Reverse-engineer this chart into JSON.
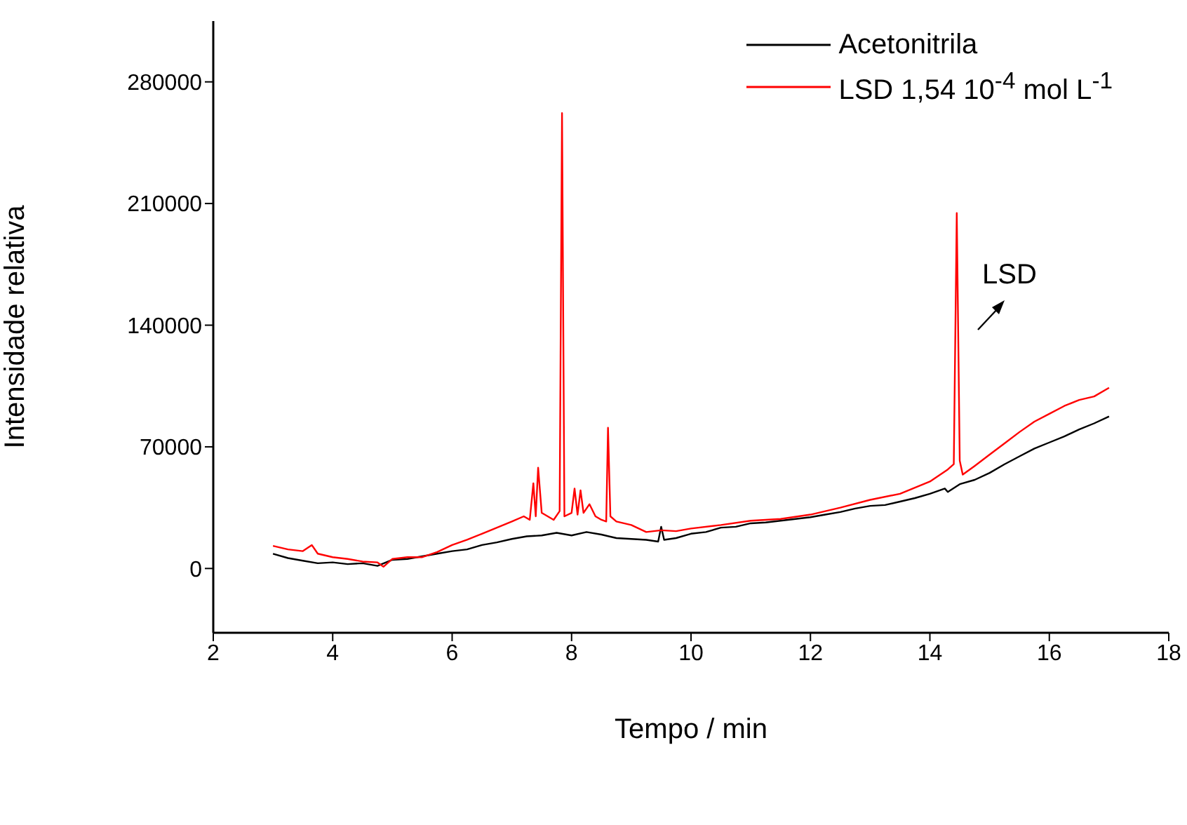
{
  "chart_data": {
    "type": "line",
    "xlabel": "Tempo /  min",
    "ylabel": "Intensidade relativa",
    "xlim": [
      2,
      18
    ],
    "xticks": [
      2,
      4,
      6,
      8,
      10,
      12,
      14,
      16,
      18
    ],
    "ylim": [
      -37000,
      315000
    ],
    "yticks": [
      0,
      70000,
      140000,
      210000,
      280000
    ],
    "grid": false,
    "legend": "top right",
    "marker": "none",
    "line_style": "solid",
    "annotations": [
      "LSD"
    ],
    "series": [
      {
        "name": "Acetonitrila",
        "color": "#000000",
        "x": [
          3,
          3.25,
          3.5,
          3.75,
          4,
          4.25,
          4.5,
          4.75,
          5,
          5.25,
          5.5,
          5.75,
          6,
          6.25,
          6.5,
          6.75,
          7,
          7.25,
          7.5,
          7.75,
          8,
          8.25,
          8.5,
          8.75,
          9,
          9.25,
          9.45,
          9.5,
          9.55,
          9.75,
          10,
          10.25,
          10.5,
          10.75,
          11,
          11.25,
          11.5,
          11.75,
          12,
          12.25,
          12.5,
          12.75,
          13,
          13.25,
          13.5,
          13.75,
          14,
          14.25,
          14.3,
          14.5,
          14.75,
          15,
          15.25,
          15.5,
          15.75,
          16,
          16.25,
          16.5,
          16.75,
          17
        ],
        "values": [
          8500,
          6000,
          4500,
          3000,
          3500,
          2500,
          3000,
          1500,
          5000,
          5500,
          7000,
          8500,
          10000,
          11000,
          13500,
          15000,
          17000,
          18500,
          19000,
          20500,
          19000,
          21000,
          19500,
          17500,
          17000,
          16500,
          15500,
          24000,
          16500,
          17500,
          20000,
          21000,
          23500,
          24000,
          26000,
          26500,
          27500,
          28500,
          29500,
          31000,
          32500,
          34500,
          36000,
          36500,
          38500,
          40500,
          43000,
          46000,
          44000,
          48500,
          51000,
          55000,
          60000,
          64500,
          69000,
          72500,
          76000,
          80000,
          83500,
          87500
        ]
      },
      {
        "name": "LSD 1,54 10$^{-4}$ mol L$^{-1}$",
        "color": "#ff0000",
        "x": [
          3,
          3.25,
          3.5,
          3.65,
          3.75,
          4,
          4.25,
          4.5,
          4.75,
          4.85,
          5,
          5.25,
          5.5,
          5.75,
          6,
          6.25,
          6.5,
          6.75,
          7,
          7.2,
          7.3,
          7.36,
          7.4,
          7.44,
          7.5,
          7.6,
          7.7,
          7.8,
          7.84,
          7.88,
          8,
          8.05,
          8.1,
          8.15,
          8.2,
          8.3,
          8.4,
          8.5,
          8.58,
          8.61,
          8.65,
          8.75,
          9,
          9.25,
          9.5,
          9.75,
          10,
          10.5,
          11,
          11.5,
          12,
          12.5,
          13,
          13.5,
          14,
          14.3,
          14.4,
          14.45,
          14.5,
          14.55,
          14.75,
          15,
          15.25,
          15.5,
          15.75,
          16,
          16.25,
          16.5,
          16.75,
          17
        ],
        "values": [
          13000,
          11000,
          10000,
          13500,
          8500,
          6500,
          5500,
          4000,
          3500,
          1000,
          5500,
          6500,
          6500,
          9500,
          13500,
          16500,
          20000,
          23500,
          27000,
          30000,
          28000,
          49000,
          30000,
          58000,
          32000,
          30000,
          28000,
          33000,
          262000,
          30000,
          32000,
          46000,
          31000,
          45000,
          32000,
          37000,
          30000,
          28000,
          27000,
          81000,
          30000,
          27000,
          25000,
          21000,
          22000,
          21500,
          23000,
          25000,
          27500,
          28500,
          31000,
          35000,
          39500,
          43000,
          50000,
          57000,
          60000,
          204500,
          62000,
          54000,
          59000,
          65500,
          72000,
          78500,
          84500,
          89000,
          93500,
          97000,
          99000,
          104000
        ]
      }
    ]
  }
}
